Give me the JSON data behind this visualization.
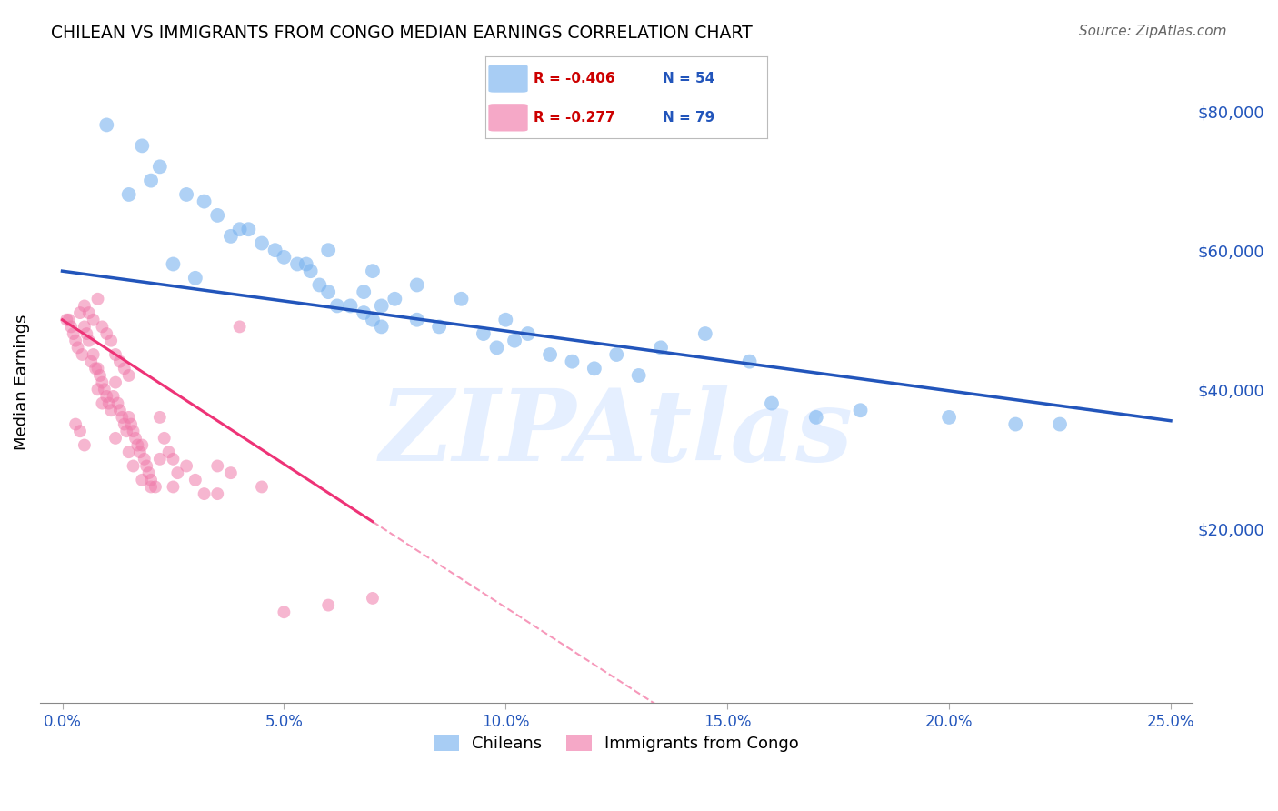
{
  "title": "CHILEAN VS IMMIGRANTS FROM CONGO MEDIAN EARNINGS CORRELATION CHART",
  "source": "Source: ZipAtlas.com",
  "xlabel_ticks": [
    "0.0%",
    "5.0%",
    "10.0%",
    "15.0%",
    "20.0%",
    "25.0%"
  ],
  "xlabel_tick_vals": [
    0.0,
    5.0,
    10.0,
    15.0,
    20.0,
    25.0
  ],
  "ylabel": "Median Earnings",
  "ylabel_right_ticks": [
    "$80,000",
    "$60,000",
    "$40,000",
    "$20,000"
  ],
  "ylabel_right_vals": [
    80000,
    60000,
    40000,
    20000
  ],
  "ylim": [
    -5000,
    87000
  ],
  "xlim": [
    -0.5,
    25.5
  ],
  "background_color": "#ffffff",
  "grid_color": "#cccccc",
  "blue_R": "-0.406",
  "blue_N": "54",
  "pink_R": "-0.277",
  "pink_N": "79",
  "blue_color": "#7ab3ef",
  "pink_color": "#f07aaa",
  "blue_line_color": "#2255bb",
  "pink_line_color": "#ee3377",
  "blue_scatter": {
    "x": [
      1.0,
      1.8,
      2.2,
      2.8,
      3.2,
      3.5,
      4.0,
      4.5,
      4.8,
      5.0,
      5.3,
      5.6,
      5.8,
      6.0,
      6.2,
      6.5,
      6.8,
      7.0,
      7.2,
      7.5,
      8.0,
      8.5,
      9.0,
      9.5,
      10.0,
      10.5,
      11.0,
      11.5,
      12.0,
      13.0,
      13.5,
      14.5,
      16.0,
      17.0,
      18.0,
      20.0,
      21.5,
      22.5,
      3.0,
      1.5,
      2.5,
      6.0,
      7.0,
      8.0,
      3.8,
      5.5,
      7.2,
      9.8,
      12.5,
      15.5,
      4.2,
      2.0,
      6.8,
      10.2
    ],
    "y": [
      78000,
      75000,
      72000,
      68000,
      67000,
      65000,
      63000,
      61000,
      60000,
      59000,
      58000,
      57000,
      55000,
      54000,
      52000,
      52000,
      51000,
      50000,
      49000,
      53000,
      50000,
      49000,
      53000,
      48000,
      50000,
      48000,
      45000,
      44000,
      43000,
      42000,
      46000,
      48000,
      38000,
      36000,
      37000,
      36000,
      35000,
      35000,
      56000,
      68000,
      58000,
      60000,
      57000,
      55000,
      62000,
      58000,
      52000,
      46000,
      45000,
      44000,
      63000,
      70000,
      54000,
      47000
    ]
  },
  "pink_scatter": {
    "x": [
      0.1,
      0.15,
      0.2,
      0.25,
      0.3,
      0.35,
      0.4,
      0.45,
      0.5,
      0.55,
      0.6,
      0.65,
      0.7,
      0.75,
      0.8,
      0.85,
      0.9,
      0.95,
      1.0,
      1.05,
      1.1,
      1.15,
      1.2,
      1.25,
      1.3,
      1.35,
      1.4,
      1.45,
      1.5,
      1.55,
      1.6,
      1.65,
      1.7,
      1.75,
      1.8,
      1.85,
      1.9,
      1.95,
      2.0,
      2.1,
      2.2,
      2.3,
      2.4,
      2.5,
      2.6,
      2.8,
      3.0,
      3.2,
      3.5,
      4.0,
      5.0,
      6.0,
      7.0,
      0.5,
      0.6,
      0.7,
      0.8,
      0.9,
      1.0,
      1.1,
      1.2,
      1.3,
      1.4,
      1.5,
      0.3,
      0.4,
      0.5,
      1.5,
      2.2,
      3.8,
      1.8,
      0.8,
      0.9,
      2.5,
      3.5,
      4.5,
      1.2,
      1.6,
      2.0
    ],
    "y": [
      50000,
      50000,
      49000,
      48000,
      47000,
      46000,
      51000,
      45000,
      49000,
      48000,
      47000,
      44000,
      45000,
      43000,
      43000,
      42000,
      41000,
      40000,
      39000,
      38000,
      37000,
      39000,
      41000,
      38000,
      37000,
      36000,
      35000,
      34000,
      36000,
      35000,
      34000,
      33000,
      32000,
      31000,
      32000,
      30000,
      29000,
      28000,
      27000,
      26000,
      36000,
      33000,
      31000,
      30000,
      28000,
      29000,
      27000,
      25000,
      29000,
      49000,
      8000,
      9000,
      10000,
      52000,
      51000,
      50000,
      53000,
      49000,
      48000,
      47000,
      45000,
      44000,
      43000,
      42000,
      35000,
      34000,
      32000,
      31000,
      30000,
      28000,
      27000,
      40000,
      38000,
      26000,
      25000,
      26000,
      33000,
      29000,
      26000
    ]
  },
  "blue_line": {
    "x": [
      0.0,
      25.0
    ],
    "y": [
      57000,
      35500
    ]
  },
  "pink_line_solid": {
    "x": [
      0.0,
      7.0
    ],
    "y": [
      50000,
      21000
    ]
  },
  "pink_line_dashed": {
    "x": [
      7.0,
      25.0
    ],
    "y": [
      21000,
      -53000
    ]
  },
  "watermark": "ZIPAtlas",
  "legend_blue_label": "Chileans",
  "legend_pink_label": "Immigrants from Congo"
}
